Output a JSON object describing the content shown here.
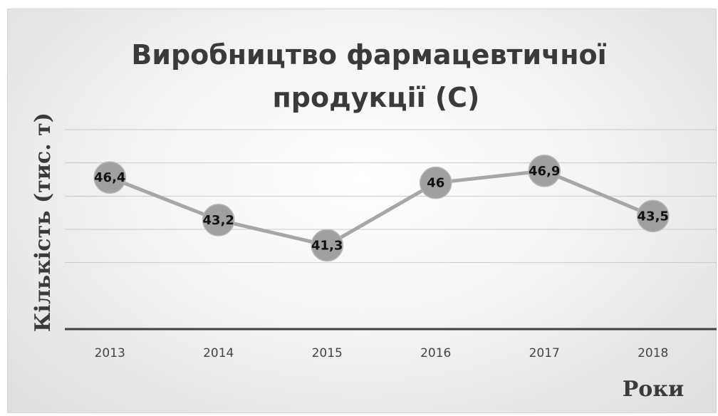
{
  "chart_data": {
    "type": "line",
    "title_line1": "Виробництво фармацевтичної",
    "title_line2": "продукції (С)",
    "xlabel": "Роки",
    "ylabel": "Кількість (тис. т)",
    "categories": [
      "2013",
      "2014",
      "2015",
      "2016",
      "2017",
      "2018"
    ],
    "values": [
      46.4,
      43.2,
      41.3,
      46,
      46.9,
      43.5
    ],
    "data_labels": [
      "46,4",
      "43,2",
      "41,3",
      "46",
      "46,9",
      "43,5"
    ],
    "ylim": [
      35,
      50
    ],
    "gridlines": [
      40,
      42.5,
      45,
      47.5,
      50
    ],
    "grid": true,
    "legend": "none",
    "line_color": "#a6a6a6",
    "marker_color": "#a0a0a0"
  }
}
